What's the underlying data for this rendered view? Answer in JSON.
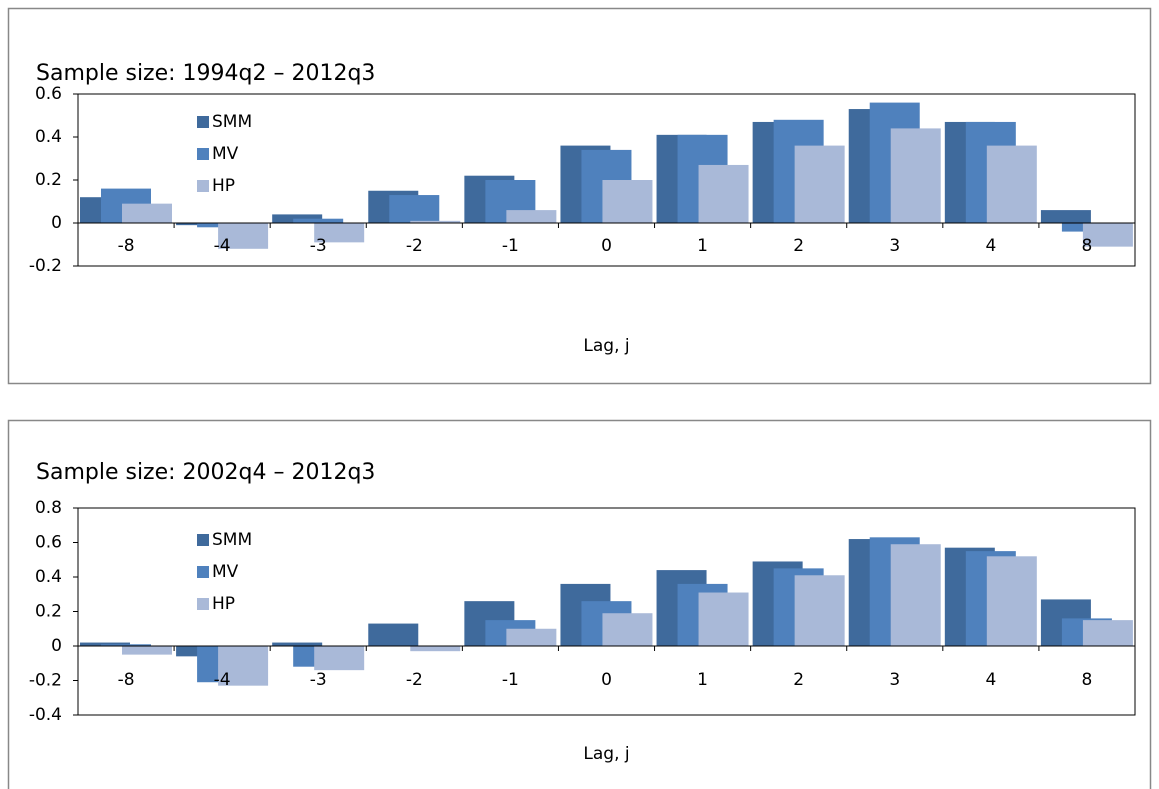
{
  "chart_data": [
    {
      "type": "bar",
      "title": "Sample size: 1994q2 – 2012q3",
      "x_label": "Lag, j",
      "categories": [
        "-8",
        "-4",
        "-3",
        "-2",
        "-1",
        "0",
        "1",
        "2",
        "3",
        "4",
        "8"
      ],
      "series": [
        {
          "name": "SMM",
          "color": "#3f6a9c",
          "values": [
            0.12,
            -0.01,
            0.04,
            0.15,
            0.22,
            0.36,
            0.41,
            0.47,
            0.53,
            0.47,
            0.06
          ]
        },
        {
          "name": "MV",
          "color": "#4f81bd",
          "values": [
            0.16,
            -0.02,
            0.02,
            0.13,
            0.2,
            0.34,
            0.41,
            0.48,
            0.56,
            0.47,
            -0.04
          ]
        },
        {
          "name": "HP",
          "color": "#a9b9d8",
          "values": [
            0.09,
            -0.12,
            -0.09,
            0.01,
            0.06,
            0.2,
            0.27,
            0.36,
            0.44,
            0.36,
            -0.11
          ]
        }
      ],
      "ylim": [
        -0.2,
        0.6
      ],
      "yticks": [
        -0.2,
        0,
        0.2,
        0.4,
        0.6
      ]
    },
    {
      "type": "bar",
      "title": "Sample size: 2002q4 – 2012q3",
      "x_label": "Lag, j",
      "categories": [
        "-8",
        "-4",
        "-3",
        "-2",
        "-1",
        "0",
        "1",
        "2",
        "3",
        "4",
        "8"
      ],
      "series": [
        {
          "name": "SMM",
          "color": "#3f6a9c",
          "values": [
            0.02,
            -0.06,
            0.02,
            0.13,
            0.26,
            0.36,
            0.44,
            0.49,
            0.62,
            0.57,
            0.27
          ]
        },
        {
          "name": "MV",
          "color": "#4f81bd",
          "values": [
            0.01,
            -0.21,
            -0.12,
            0,
            0.15,
            0.26,
            0.36,
            0.45,
            0.63,
            0.55,
            0.16
          ]
        },
        {
          "name": "HP",
          "color": "#a9b9d8",
          "values": [
            -0.05,
            -0.23,
            -0.14,
            -0.03,
            0.1,
            0.19,
            0.31,
            0.41,
            0.59,
            0.52,
            0.15
          ]
        }
      ],
      "ylim": [
        -0.4,
        0.8
      ],
      "yticks": [
        -0.4,
        -0.2,
        0,
        0.2,
        0.4,
        0.6,
        0.8
      ]
    }
  ]
}
